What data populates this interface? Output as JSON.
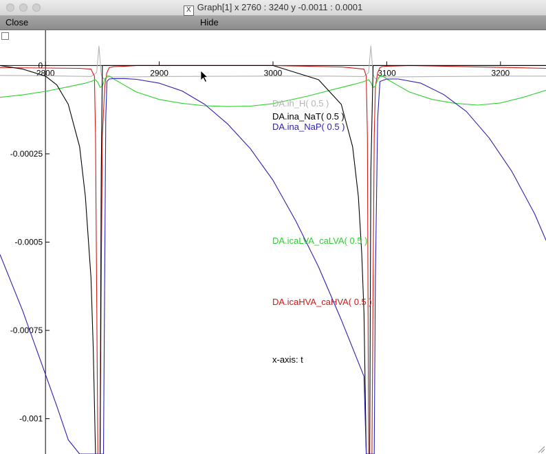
{
  "window": {
    "title": "Graph[1]  x 2760 : 3240  y -0.0011 : 0.0001",
    "x_icon": "x-window-icon"
  },
  "menu": {
    "close_label": "Close",
    "hide_label": "Hide"
  },
  "chart_data": {
    "type": "line",
    "title": "",
    "xlabel": "x-axis: t",
    "ylabel": "",
    "xlim": [
      2760,
      3240
    ],
    "ylim": [
      -0.0011,
      0.0001
    ],
    "xticks": [
      2800,
      2900,
      3000,
      3100,
      3200
    ],
    "xtick_labels": [
      "2800",
      "2900",
      "3000",
      "3100",
      "3200"
    ],
    "yticks": [
      0,
      -0.00025,
      -0.0005,
      -0.00075,
      -0.001
    ],
    "ytick_labels": [
      "0",
      "-0.00025",
      "-0.0005",
      "-0.00075",
      "-0.001"
    ],
    "grid": false,
    "legend_position": "center",
    "series": [
      {
        "name": "DA.ih_H( 0.5 )",
        "color": "#b4b4b4",
        "x": [
          2760,
          2800,
          2840,
          2845,
          2847,
          2849,
          2851,
          2855,
          2870,
          2900,
          3000,
          3050,
          3080,
          3084,
          3086,
          3088,
          3090,
          3094,
          3110,
          3150,
          3200,
          3240
        ],
        "y": [
          -2.8e-05,
          -2.9e-05,
          -3.1e-05,
          -2e-05,
          5.5e-05,
          -2.6e-05,
          -3.8e-05,
          -3.2e-05,
          -3.2e-05,
          -3.1e-05,
          -3e-05,
          -3e-05,
          -3.1e-05,
          -2e-05,
          5.5e-05,
          -2.6e-05,
          -3.8e-05,
          -3.2e-05,
          -3.2e-05,
          -3.1e-05,
          -3e-05,
          -3e-05
        ]
      },
      {
        "name": "DA.ina_NaT( 0.5 )",
        "color": "#000000",
        "x": [
          2760,
          2780,
          2800,
          2810,
          2820,
          2830,
          2835,
          2840,
          2842,
          2844,
          2846,
          2848,
          2849,
          2850,
          2852,
          2855,
          2860,
          2900,
          3000,
          3040,
          3060,
          3070,
          3075,
          3078,
          3080,
          3082,
          3084,
          3085,
          3086,
          3088,
          3090,
          3095,
          3100,
          3150,
          3200,
          3240
        ],
        "y": [
          0,
          -1e-05,
          -3e-05,
          -5.5e-05,
          -0.00011,
          -0.00023,
          -0.00037,
          -0.0006,
          -0.0008,
          -0.0011,
          -0.0011,
          -0.0011,
          -0.0003,
          0,
          0,
          0,
          0,
          0,
          0,
          -4e-05,
          -0.00011,
          -0.00023,
          -0.00037,
          -0.00053,
          -0.0007,
          -0.0011,
          -0.0011,
          -0.0011,
          -0.0003,
          0,
          0,
          0,
          0,
          0,
          0,
          0
        ]
      },
      {
        "name": "DA.ina_NaP( 0.5 )",
        "color": "#2a1fb0",
        "x": [
          2760,
          2770,
          2780,
          2790,
          2800,
          2810,
          2820,
          2830,
          2840,
          2845,
          2846,
          2847,
          2848,
          2849,
          2850,
          2851,
          2852,
          2853,
          2854,
          2856,
          2860,
          2870,
          2880,
          2900,
          2920,
          2940,
          2960,
          2980,
          3000,
          3020,
          3040,
          3060,
          3080,
          3082,
          3083,
          3084,
          3085,
          3086,
          3087,
          3088,
          3089,
          3090,
          3092,
          3094,
          3100,
          3110,
          3130,
          3150,
          3170,
          3190,
          3210,
          3230,
          3240
        ],
        "y": [
          -0.000535,
          -0.000615,
          -0.000695,
          -0.000785,
          -0.000875,
          -0.000965,
          -0.00106,
          -0.0011,
          -0.0011,
          -0.0011,
          -0.0011,
          -0.0011,
          -0.0011,
          -0.0011,
          -0.0011,
          -0.0011,
          -0.0006,
          -0.00015,
          -4.5e-05,
          -3.8e-05,
          -3.7e-05,
          -3.7e-05,
          -3.9e-05,
          -5e-05,
          -7.2e-05,
          -0.00011,
          -0.000165,
          -0.000235,
          -0.000325,
          -0.00044,
          -0.00057,
          -0.00072,
          -0.00088,
          -0.0011,
          -0.0011,
          -0.0011,
          -0.0011,
          -0.0011,
          -0.0011,
          -0.0011,
          -0.0011,
          -0.0006,
          -0.00015,
          -4.5e-05,
          -3.8e-05,
          -3.8e-05,
          -5e-05,
          -8.2e-05,
          -0.00013,
          -0.000205,
          -0.0003,
          -0.00042,
          -0.000495
        ]
      },
      {
        "name": "DA.icaLVA_caLVA( 0.5 )",
        "color": "#2bd12b",
        "x": [
          2760,
          2780,
          2800,
          2820,
          2835,
          2840,
          2844,
          2846,
          2848,
          2850,
          2852,
          2854,
          2856,
          2858,
          2860,
          2870,
          2880,
          2900,
          2920,
          2940,
          2960,
          2980,
          3000,
          3030,
          3060,
          3075,
          3080,
          3084,
          3086,
          3088,
          3090,
          3092,
          3094,
          3096,
          3098,
          3100,
          3110,
          3120,
          3140,
          3160,
          3180,
          3200,
          3220,
          3240
        ],
        "y": [
          -9e-05,
          -8.3e-05,
          -7.3e-05,
          -6e-05,
          -5e-05,
          -4.5e-05,
          -4e-05,
          -4.8e-05,
          -6.2e-05,
          -5.8e-05,
          -4e-05,
          -3e-05,
          -3e-05,
          -3.3e-05,
          -3.8e-05,
          -5.7e-05,
          -7.5e-05,
          -9.6e-05,
          -0.000107,
          -0.000114,
          -0.000116,
          -0.000115,
          -0.000108,
          -8.7e-05,
          -6.2e-05,
          -5e-05,
          -4.5e-05,
          -4e-05,
          -4.8e-05,
          -6.2e-05,
          -5.8e-05,
          -4e-05,
          -3e-05,
          -3e-05,
          -3.3e-05,
          -3.8e-05,
          -5.7e-05,
          -7.5e-05,
          -9.6e-05,
          -0.000107,
          -0.000112,
          -0.000106,
          -9e-05,
          -7e-05
        ]
      },
      {
        "name": "DA.icaHVA_caHVA( 0.5 )",
        "color": "#d01818",
        "x": [
          2760,
          2800,
          2830,
          2840,
          2843,
          2844,
          2846,
          2847,
          2848,
          2849,
          2850,
          2852,
          2854,
          2856,
          2860,
          2870,
          2880,
          3000,
          3060,
          3080,
          3082,
          3083,
          3084,
          3086,
          3087,
          3088,
          3089,
          3090,
          3092,
          3094,
          3096,
          3100,
          3110,
          3120,
          3240
        ],
        "y": [
          -6e-06,
          -7e-06,
          -8e-06,
          -1e-05,
          -3e-05,
          -0.0002,
          -0.0011,
          -0.0011,
          -0.0011,
          -0.0006,
          -0.0002,
          -6e-05,
          -2e-05,
          -6e-06,
          -3e-06,
          -2e-06,
          0,
          0,
          -4e-06,
          -1e-05,
          -3e-05,
          -0.0002,
          -0.0011,
          -0.0011,
          -0.0011,
          -0.0006,
          -0.0002,
          -6e-05,
          -2e-05,
          -6e-06,
          -3e-06,
          -2e-06,
          -1e-06,
          0,
          -8e-06
        ]
      }
    ]
  }
}
